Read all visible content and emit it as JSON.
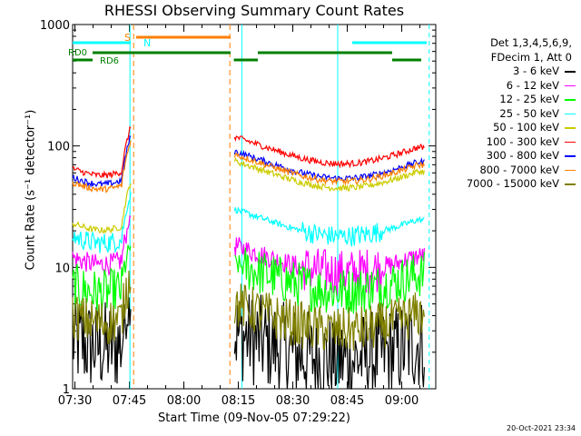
{
  "title": "RHESSI Observing Summary Count Rates",
  "legend": {
    "header_line1": "Det 1,3,4,5,6,9,",
    "header_line2": "FDecim 1, Att 0"
  },
  "footer": "20-Oct-2021 23:34",
  "chart_data": {
    "type": "line",
    "title": "RHESSI Observing Summary Count Rates",
    "xlabel": "Start Time (09-Nov-05 07:29:22)",
    "ylabel": "Count Rate (s⁻¹ detector⁻¹)",
    "y_scale": "log",
    "ylim": [
      1,
      1000
    ],
    "xlim_minutes_since_start": [
      0,
      100
    ],
    "x_ticks": [
      "07:30",
      "07:45",
      "08:00",
      "08:15",
      "08:30",
      "08:45",
      "09:00"
    ],
    "y_ticks": [
      "1",
      "10",
      "100",
      "1000"
    ],
    "grid": false,
    "legend_position": "right",
    "series": [
      {
        "name": "3 - 6 keV",
        "color": "#000000",
        "level_before": 2.5,
        "level_after": 2.3
      },
      {
        "name": "6 - 12 keV",
        "color": "#ff00ff",
        "level_before": 12,
        "level_after": 12
      },
      {
        "name": "12 - 25 keV",
        "color": "#00ff00",
        "level_before": 7,
        "level_after": 8.5
      },
      {
        "name": "25 - 50 keV",
        "color": "#00ffff",
        "level_before": 18,
        "level_after": 24
      },
      {
        "name": "50 - 100 keV",
        "color": "#cccc00",
        "level_before": 23,
        "level_after": 60
      },
      {
        "name": "100 - 300 keV",
        "color": "#ff0000",
        "level_before": 65,
        "level_after": 95
      },
      {
        "name": "300 - 800 keV",
        "color": "#0000ff",
        "level_before": 55,
        "level_after": 72
      },
      {
        "name": "800 - 7000 keV",
        "color": "#ff8000",
        "level_before": 50,
        "level_after": 68
      },
      {
        "name": "7000 - 15000 keV",
        "color": "#808000",
        "level_before": 4,
        "level_after": 4
      }
    ],
    "flags": [
      {
        "label": "S",
        "color": "#ff8000"
      },
      {
        "label": "N",
        "color": "#00ffff"
      },
      {
        "label": "RD0",
        "color": "#008000"
      },
      {
        "label": "RD6",
        "color": "#008000"
      }
    ]
  }
}
